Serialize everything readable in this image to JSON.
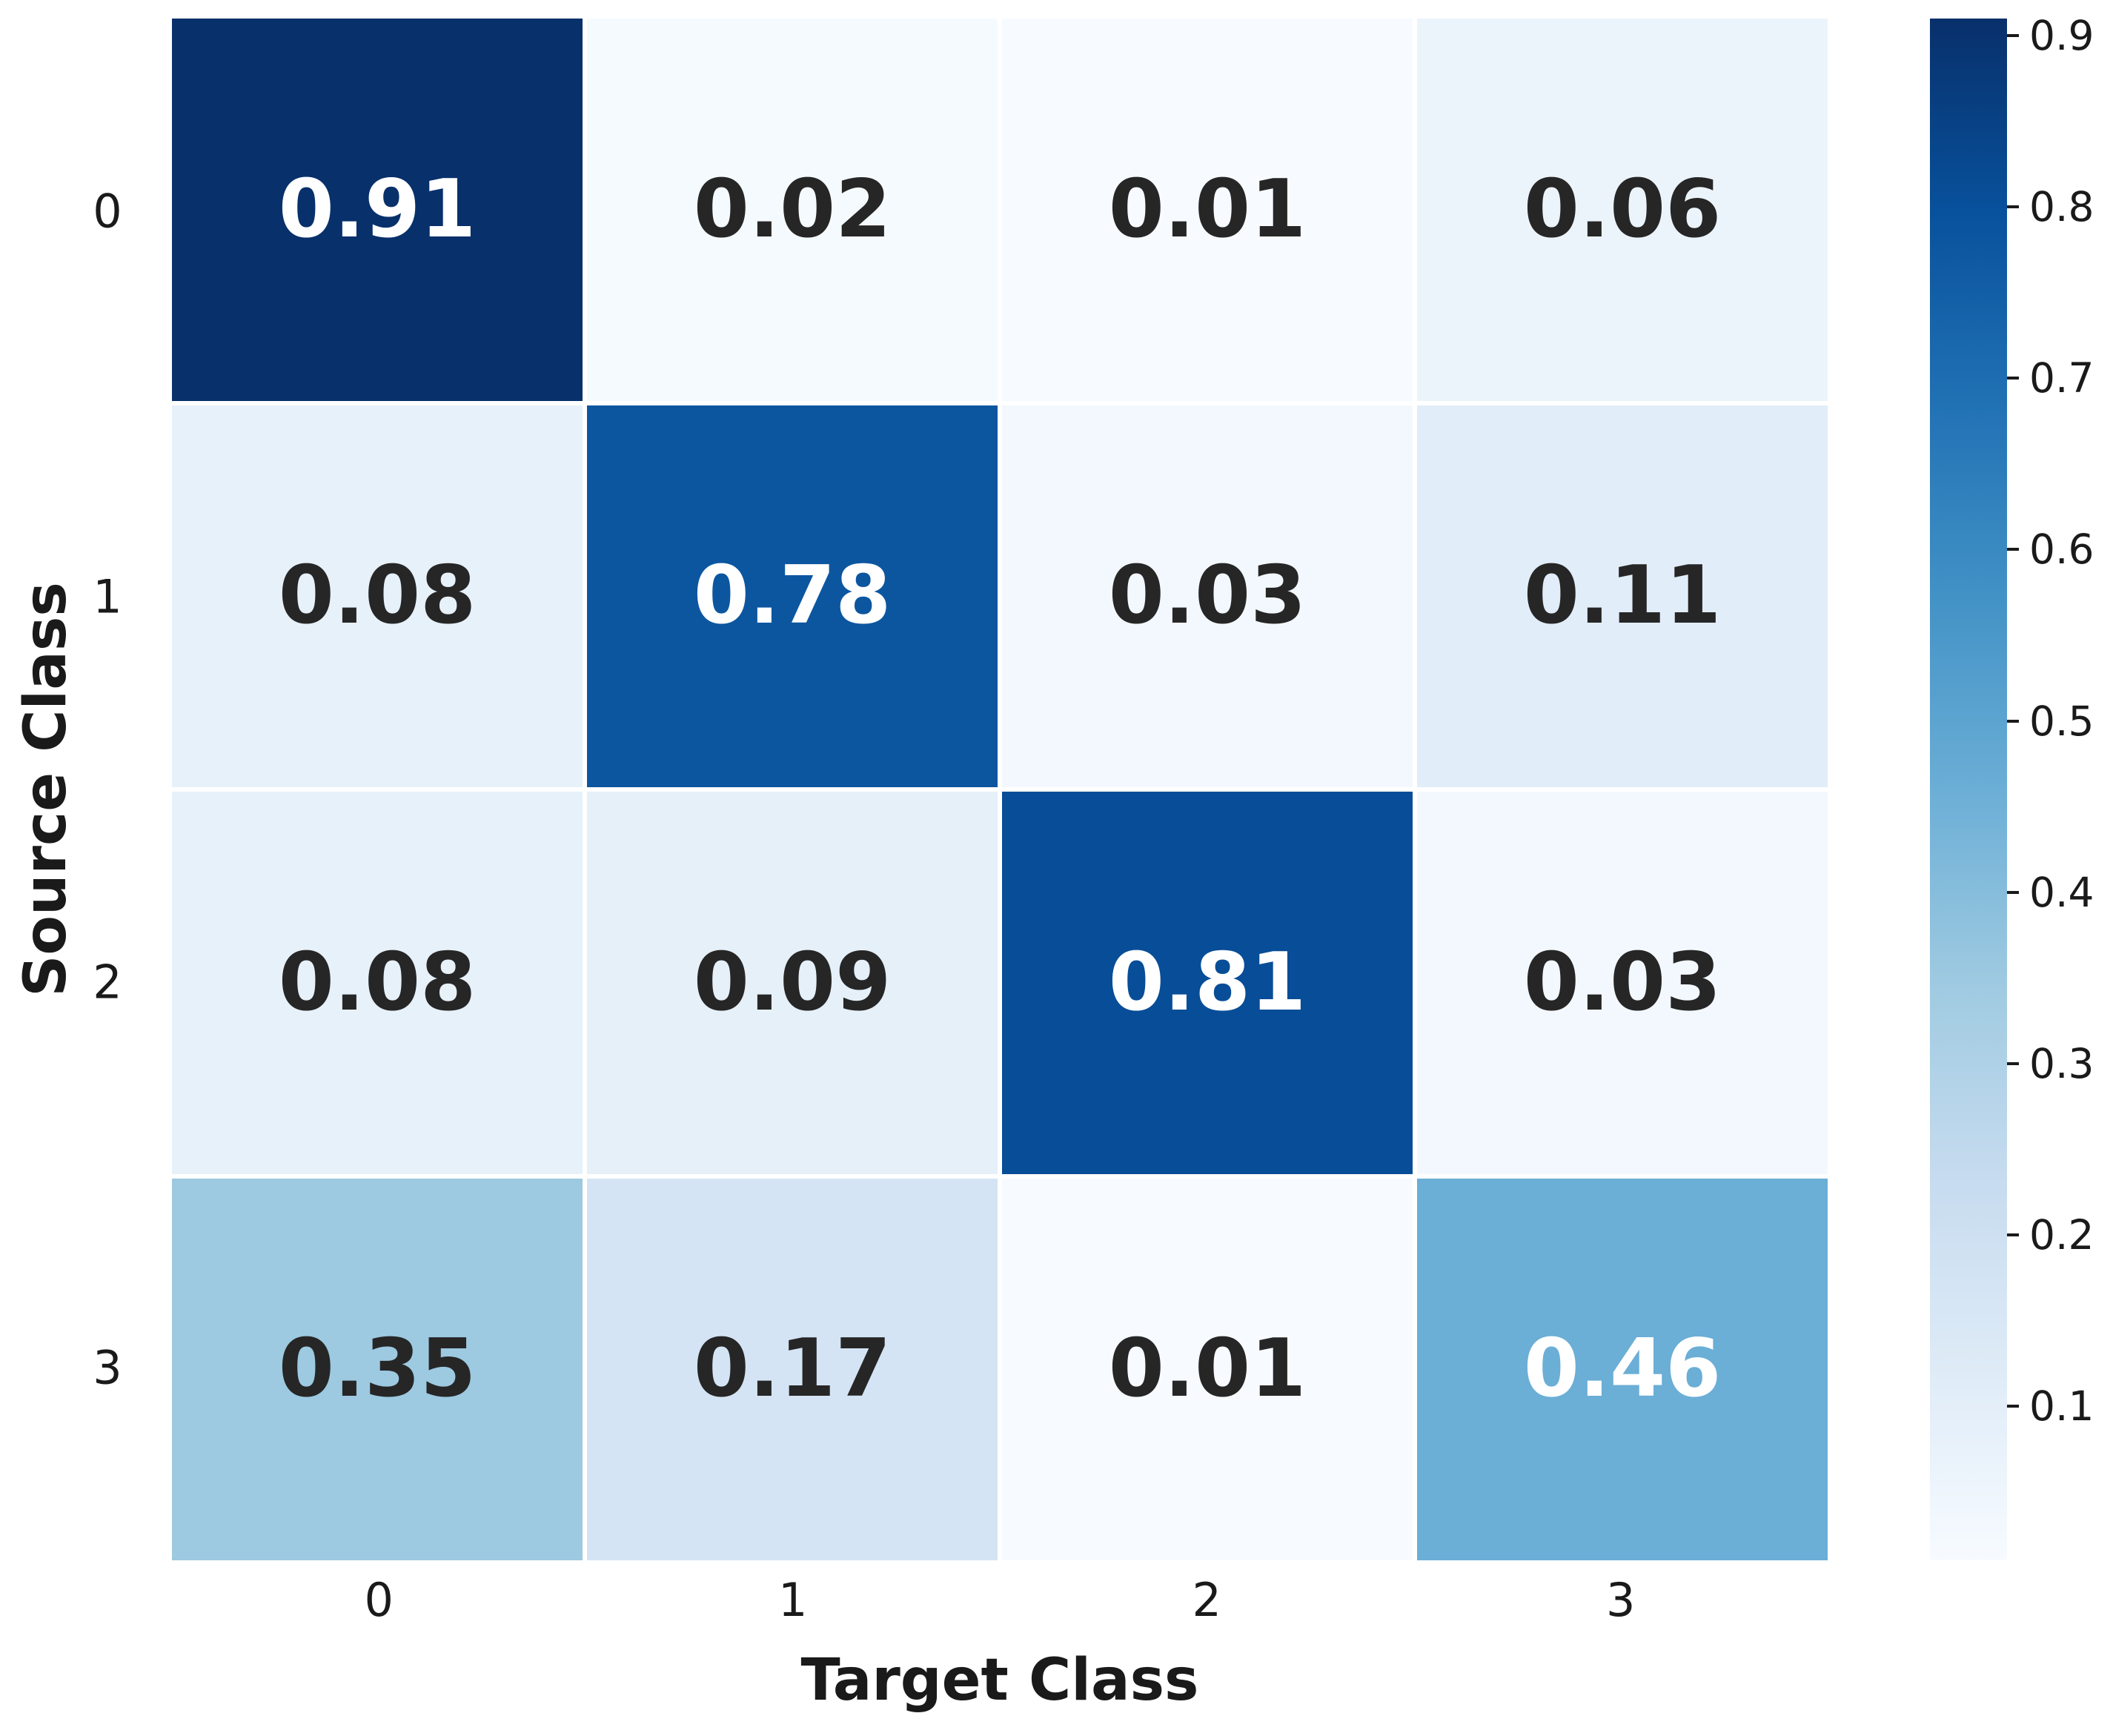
{
  "chart_data": {
    "type": "heatmap",
    "title": "",
    "xlabel": "Target Class",
    "ylabel": "Source Class",
    "x_ticklabels": [
      "0",
      "1",
      "2",
      "3"
    ],
    "y_ticklabels": [
      "0",
      "1",
      "2",
      "3"
    ],
    "matrix": [
      [
        0.91,
        0.02,
        0.01,
        0.06
      ],
      [
        0.08,
        0.78,
        0.03,
        0.11
      ],
      [
        0.08,
        0.09,
        0.81,
        0.03
      ],
      [
        0.35,
        0.17,
        0.01,
        0.46
      ]
    ],
    "vmin": 0.01,
    "vmax": 0.91,
    "colormap": "Blues",
    "colormap_stops": [
      "#f7fbff",
      "#deebf7",
      "#c6dbef",
      "#9ecae1",
      "#6baed6",
      "#4292c6",
      "#2171b5",
      "#08519c",
      "#08306b"
    ],
    "colorbar_ticklabels": [
      "0.1",
      "0.2",
      "0.3",
      "0.4",
      "0.5",
      "0.6",
      "0.7",
      "0.8",
      "0.9"
    ],
    "annotation_decimals": 2,
    "legend_position": "right",
    "grid": false,
    "colors": {
      "background": "#ffffff",
      "cell_divider": "#ffffff",
      "text_dark": "#262626",
      "text_light": "#ffffff",
      "axis_text": "#1a1a1a"
    }
  }
}
